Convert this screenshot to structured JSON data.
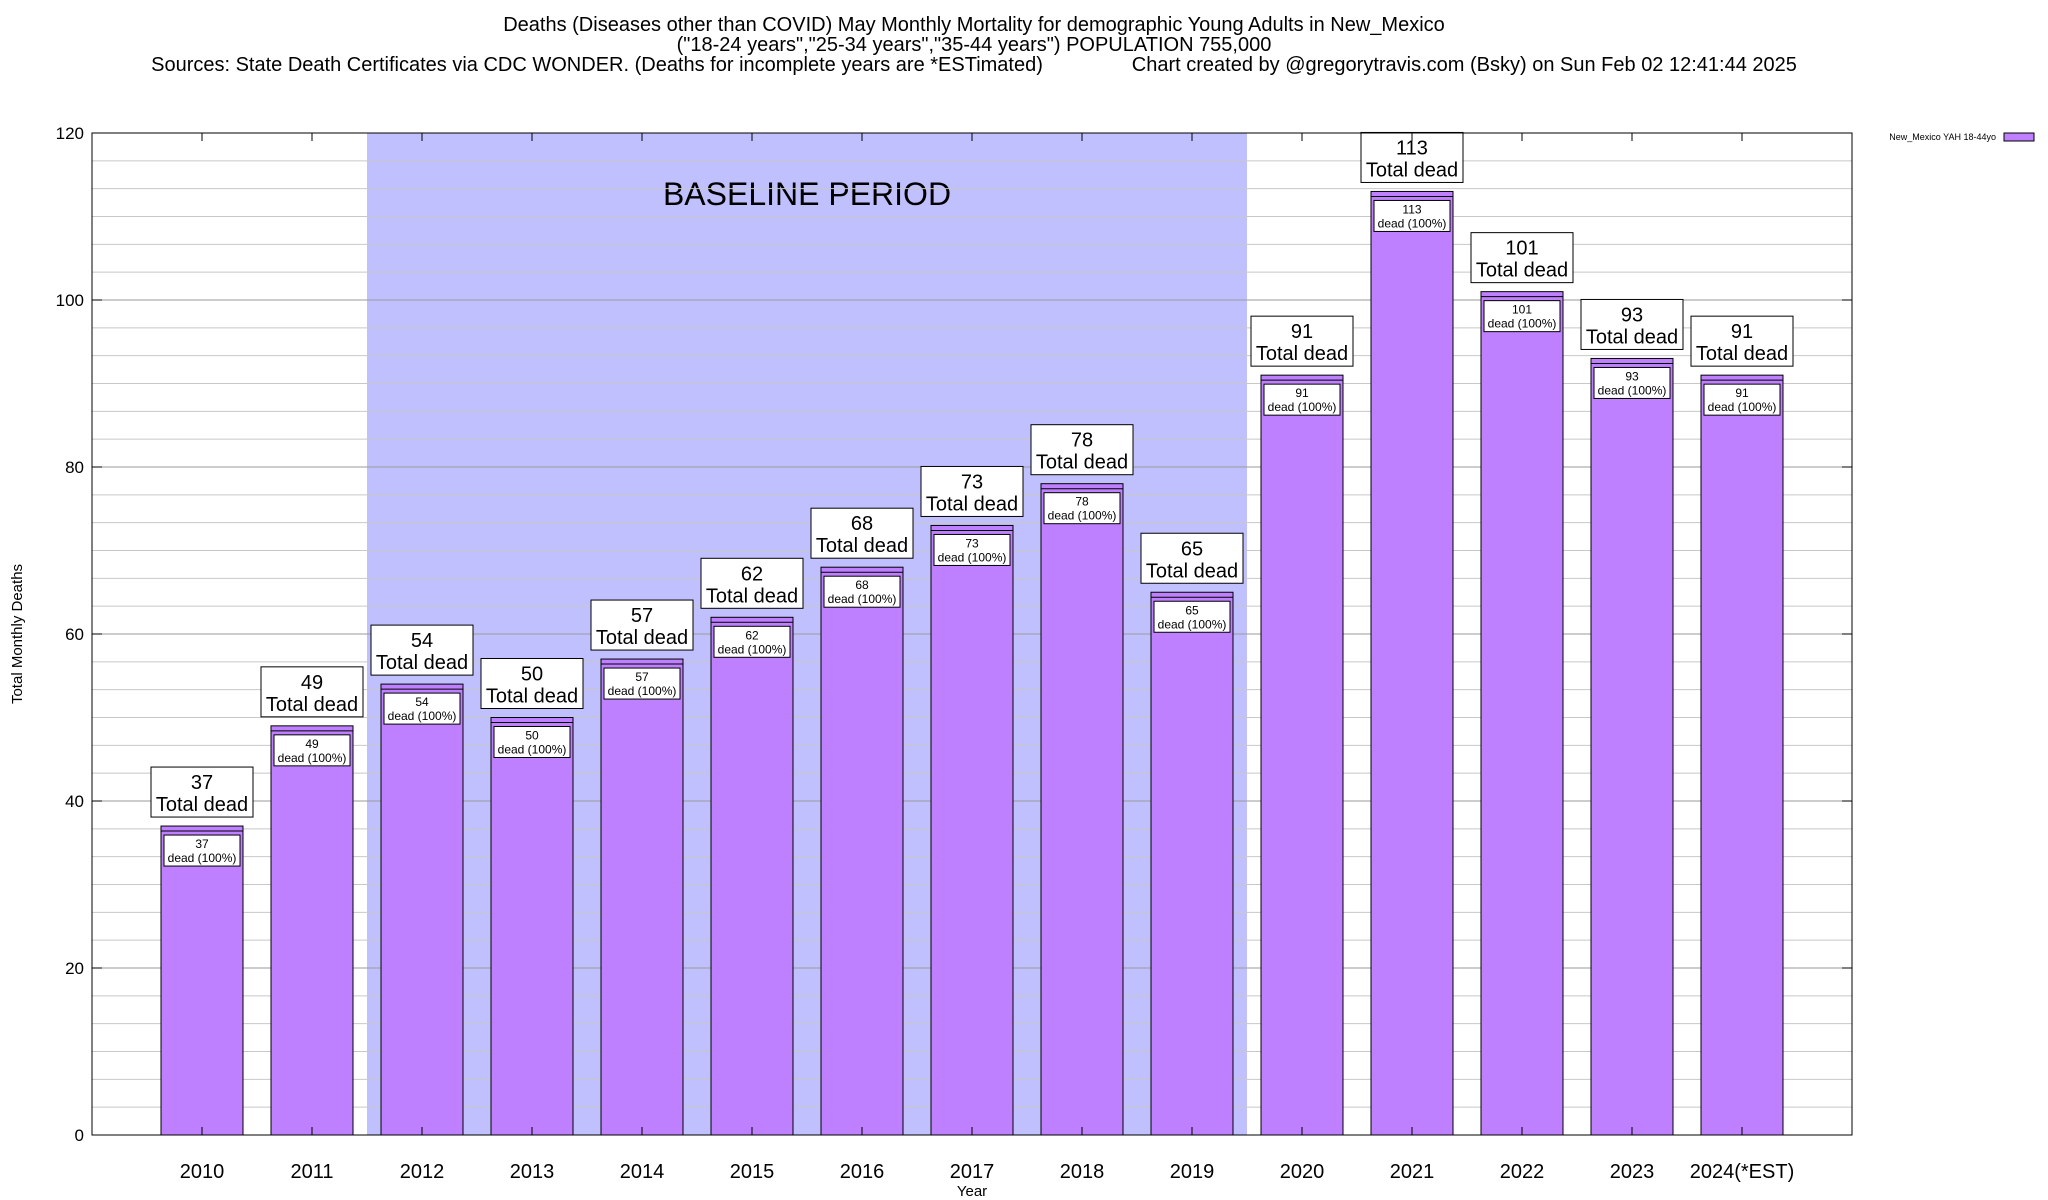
{
  "chart_data": {
    "type": "bar",
    "title_lines": [
      "Deaths (Diseases other than COVID) May Monthly Mortality for demographic Young Adults in New_Mexico",
      "(\"18-24 years\",\"25-34 years\",\"35-44 years\") POPULATION 755,000",
      "Sources: State Death Certificates via CDC WONDER. (Deaths for incomplete years are *ESTimated)                Chart created by @gregorytravis.com (Bsky) on Sun Feb 02 12:41:44 2025"
    ],
    "xlabel": "Year",
    "ylabel": "Total Monthly Deaths",
    "ylim": [
      0,
      120
    ],
    "yticks": [
      0,
      20,
      40,
      60,
      80,
      100,
      120
    ],
    "grid": true,
    "legend": {
      "position": "top-right",
      "entries": [
        "New_Mexico YAH 18-44yo"
      ]
    },
    "baseline": {
      "label": "BASELINE PERIOD",
      "from": "2012",
      "to": "2019",
      "color": "#c0c0ff"
    },
    "categories": [
      "2010",
      "2011",
      "2012",
      "2013",
      "2014",
      "2015",
      "2016",
      "2017",
      "2018",
      "2019",
      "2020",
      "2021",
      "2022",
      "2023",
      "2024(*EST)"
    ],
    "series": [
      {
        "name": "New_Mexico YAH 18-44yo",
        "color": "#bf80ff",
        "values": [
          37,
          49,
          54,
          50,
          57,
          62,
          68,
          73,
          78,
          65,
          91,
          113,
          101,
          93,
          91
        ]
      }
    ],
    "total_label": "Total dead",
    "inner_label": "dead (100%)"
  }
}
